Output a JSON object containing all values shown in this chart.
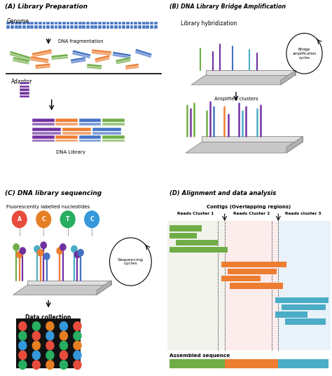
{
  "panel_A_title": "(A) Library Preparation",
  "panel_B_title": "(B) DNA Library Bridge Amplification",
  "panel_C_title": "(C) DNA library sequencing",
  "panel_D_title": "(D) Alignment and data analysis",
  "genome_color": "#4472C4",
  "green": "#70AD47",
  "orange": "#ED7D31",
  "blue_dna": "#4472C4",
  "purple": "#7030A0",
  "cyan": "#4BACC6",
  "red_nuc": "#E74C3C",
  "orange_nuc": "#E67E22",
  "green_nuc": "#27AE60",
  "blue_nuc": "#3498DB",
  "background_color": "#ffffff",
  "cluster1_bg": "#eef0e8",
  "cluster2_bg": "#fde8e8",
  "cluster3_bg": "#e4eef8"
}
